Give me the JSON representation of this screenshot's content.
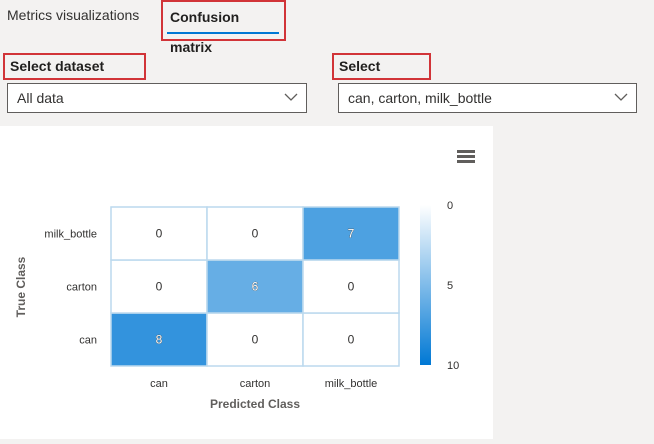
{
  "tabs": [
    {
      "label": "Metrics visualizations",
      "selected": false
    },
    {
      "label": "Confusion matrix",
      "selected": true
    }
  ],
  "cohort": {
    "label": "Select dataset cohort",
    "value": "All data"
  },
  "classes": {
    "label": "Select classes",
    "value": "can, carton, milk_bottle"
  },
  "chart_data": {
    "type": "heatmap",
    "x_categories": [
      "can",
      "carton",
      "milk_bottle"
    ],
    "y_categories": [
      "can",
      "carton",
      "milk_bottle"
    ],
    "values": [
      [
        8,
        0,
        0
      ],
      [
        0,
        6,
        0
      ],
      [
        0,
        0,
        7
      ]
    ],
    "xlabel": "Predicted Class",
    "ylabel": "True Class",
    "colorbar": {
      "min": 0,
      "max": 10,
      "ticks": [
        0,
        5,
        10
      ]
    },
    "colors": {
      "low": "#ffffff",
      "high": "#0078d4"
    }
  },
  "colors": {
    "highlight": "#d13438",
    "accent": "#0078d4"
  }
}
